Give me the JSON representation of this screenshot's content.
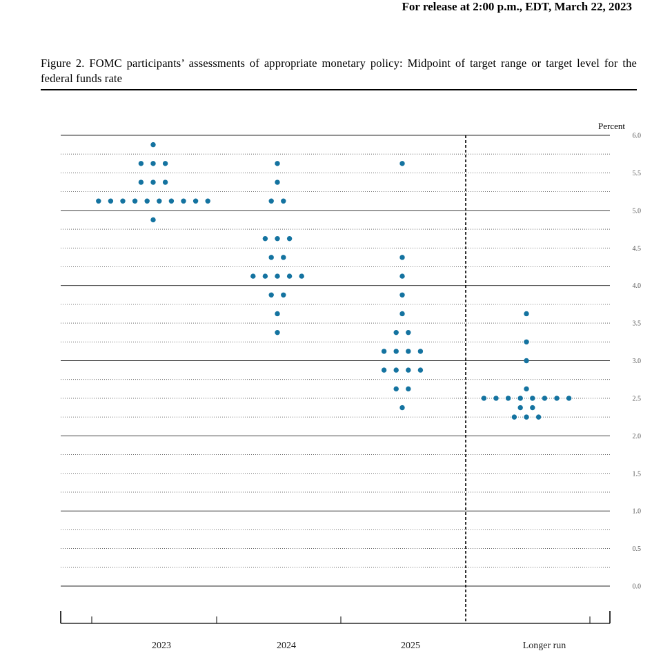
{
  "header": {
    "release_note": "For release at 2:00 p.m., EDT, March 22, 2023"
  },
  "figure": {
    "title": "Figure 2.  FOMC participants’ assessments of appropriate monetary policy:  Midpoint of target range or target level for the federal funds rate"
  },
  "colors": {
    "dot": "#1473a0",
    "gridline": "#000000",
    "divider": "#000000"
  },
  "chart_data": {
    "type": "scatter",
    "subtype": "dot plot",
    "unit_label": "Percent",
    "ylim": [
      0,
      6
    ],
    "y_ticks": [
      "0.0",
      "0.5",
      "1.0",
      "1.5",
      "2.0",
      "2.5",
      "3.0",
      "3.5",
      "4.0",
      "4.5",
      "5.0",
      "5.5",
      "6.0"
    ],
    "grid": "dotted horizontal gridlines every 0.25, solid every 1.0",
    "categories": [
      "2023",
      "2024",
      "2025",
      "Longer run"
    ],
    "divider_before": "Longer run",
    "points": [
      {
        "category": "2023",
        "y": 5.875,
        "count": 1
      },
      {
        "category": "2023",
        "y": 5.625,
        "count": 3
      },
      {
        "category": "2023",
        "y": 5.375,
        "count": 3
      },
      {
        "category": "2023",
        "y": 5.125,
        "count": 10
      },
      {
        "category": "2023",
        "y": 4.875,
        "count": 1
      },
      {
        "category": "2024",
        "y": 5.625,
        "count": 1
      },
      {
        "category": "2024",
        "y": 5.375,
        "count": 1
      },
      {
        "category": "2024",
        "y": 5.125,
        "count": 2
      },
      {
        "category": "2024",
        "y": 4.625,
        "count": 3
      },
      {
        "category": "2024",
        "y": 4.375,
        "count": 2
      },
      {
        "category": "2024",
        "y": 4.125,
        "count": 5
      },
      {
        "category": "2024",
        "y": 3.875,
        "count": 2
      },
      {
        "category": "2024",
        "y": 3.625,
        "count": 1
      },
      {
        "category": "2024",
        "y": 3.375,
        "count": 1
      },
      {
        "category": "2025",
        "y": 5.625,
        "count": 1
      },
      {
        "category": "2025",
        "y": 4.375,
        "count": 1
      },
      {
        "category": "2025",
        "y": 4.125,
        "count": 1
      },
      {
        "category": "2025",
        "y": 3.875,
        "count": 1
      },
      {
        "category": "2025",
        "y": 3.625,
        "count": 1
      },
      {
        "category": "2025",
        "y": 3.375,
        "count": 2
      },
      {
        "category": "2025",
        "y": 3.125,
        "count": 4
      },
      {
        "category": "2025",
        "y": 2.875,
        "count": 4
      },
      {
        "category": "2025",
        "y": 2.625,
        "count": 2
      },
      {
        "category": "2025",
        "y": 2.375,
        "count": 1
      },
      {
        "category": "Longer run",
        "y": 3.625,
        "count": 1
      },
      {
        "category": "Longer run",
        "y": 3.25,
        "count": 1
      },
      {
        "category": "Longer run",
        "y": 3.0,
        "count": 1
      },
      {
        "category": "Longer run",
        "y": 2.625,
        "count": 1
      },
      {
        "category": "Longer run",
        "y": 2.5,
        "count": 8
      },
      {
        "category": "Longer run",
        "y": 2.375,
        "count": 2
      },
      {
        "category": "Longer run",
        "y": 2.25,
        "count": 3
      }
    ]
  }
}
